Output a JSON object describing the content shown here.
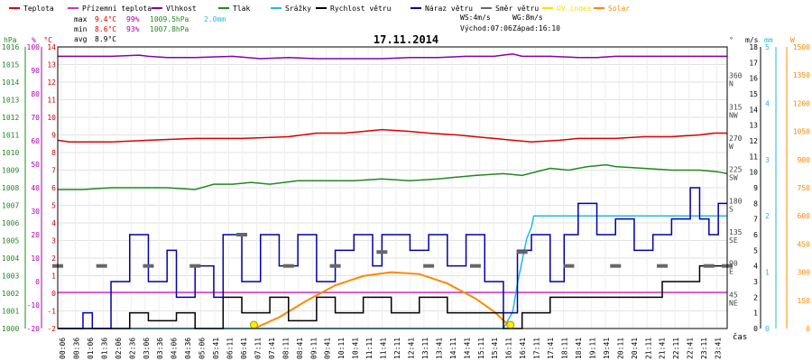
{
  "chart_data": {
    "type": "line",
    "title": "17.11.2014",
    "legend": [
      {
        "label": "Teplota",
        "color": "#dd0000"
      },
      {
        "label": "Přízemní teplota",
        "color": "#cc33cc"
      },
      {
        "label": "Vlhkost",
        "color": "#8800aa"
      },
      {
        "label": "Tlak",
        "color": "#228822"
      },
      {
        "label": "Srážky",
        "color": "#22bbdd"
      },
      {
        "label": "Rychlost větru",
        "color": "#000000"
      },
      {
        "label": "Náraz větru",
        "color": "#0000aa"
      },
      {
        "label": "Směr větru",
        "color": "#666666"
      },
      {
        "label": "UV index",
        "color": "#ffdd00"
      },
      {
        "label": "Solar",
        "color": "#ff8800"
      }
    ],
    "stats": [
      {
        "label": "max",
        "temp": "9.4°C",
        "hum": "99%",
        "pres": "1009.5hPa",
        "rain": "2.0mm"
      },
      {
        "label": "min",
        "temp": "8.6°C",
        "hum": "93%",
        "pres": "1007.8hPa",
        "rain": ""
      },
      {
        "label": "avg",
        "temp": "8.9°C",
        "hum": "",
        "pres": "",
        "rain": ""
      }
    ],
    "wind_info": {
      "ws": "WS:4m/s",
      "wg": "WG:8m/s",
      "sunrise": "Východ:07:06",
      "sunset": "Západ:16:10"
    },
    "x_unit": "čas",
    "x_ticks": [
      "00:06",
      "00:36",
      "01:06",
      "01:36",
      "02:06",
      "02:36",
      "03:06",
      "03:36",
      "04:06",
      "04:36",
      "05:06",
      "05:41",
      "06:11",
      "06:41",
      "07:11",
      "07:41",
      "08:11",
      "08:41",
      "09:11",
      "09:41",
      "10:11",
      "10:41",
      "11:11",
      "11:41",
      "12:11",
      "12:41",
      "13:11",
      "13:41",
      "14:11",
      "14:41",
      "15:11",
      "15:41",
      "16:11",
      "16:41",
      "17:11",
      "17:41",
      "18:11",
      "18:41",
      "19:11",
      "19:41",
      "20:11",
      "20:41",
      "21:11",
      "21:41",
      "22:11",
      "22:41",
      "23:11",
      "23:41"
    ],
    "x_range_minutes": [
      6,
      1439
    ],
    "axes": {
      "hpa": {
        "unit": "hPa",
        "color": "#228822",
        "range": [
          1000,
          1016
        ],
        "ticks": [
          "1000",
          "1001",
          "1002",
          "1003",
          "1004",
          "1005",
          "1006",
          "1007",
          "1008",
          "1009",
          "1010",
          "1011",
          "1012",
          "1013",
          "1014",
          "1015",
          "1016"
        ]
      },
      "pct": {
        "unit": "%",
        "color": "#aa00aa",
        "range": [
          -20,
          100
        ],
        "ticks": [
          "-20",
          "-10",
          "0",
          "10",
          "20",
          "30",
          "40",
          "50",
          "60",
          "70",
          "80",
          "90",
          "100"
        ]
      },
      "degc": {
        "unit": "°C",
        "color": "#cc0000",
        "range": [
          -2,
          14
        ],
        "ticks": [
          "-2",
          "-1",
          "0",
          "1",
          "2",
          "3",
          "4",
          "5",
          "6",
          "7",
          "8",
          "9",
          "10",
          "11",
          "12",
          "13",
          "14"
        ]
      },
      "deg": {
        "unit": "°",
        "color": "#444444",
        "ticks": [
          {
            "value": 360,
            "dir": "N"
          },
          {
            "value": 315,
            "dir": "NW"
          },
          {
            "value": 270,
            "dir": "W"
          },
          {
            "value": 225,
            "dir": "SW"
          },
          {
            "value": 180,
            "dir": "S"
          },
          {
            "value": 135,
            "dir": "SE"
          },
          {
            "value": 90,
            "dir": "E"
          },
          {
            "value": 45,
            "dir": "NE"
          }
        ]
      },
      "ms": {
        "unit": "m/s",
        "color": "#000000",
        "range": [
          0,
          18
        ],
        "ticks": [
          "0",
          "1",
          "2",
          "3",
          "4",
          "5",
          "6",
          "7",
          "8",
          "9",
          "10",
          "11",
          "12",
          "13",
          "14",
          "15",
          "16",
          "17",
          "18"
        ]
      },
      "mm": {
        "unit": "mm",
        "color": "#22bbdd",
        "range": [
          0,
          5
        ],
        "ticks": [
          "0",
          "1",
          "2",
          "3",
          "4",
          "5"
        ]
      },
      "wm2": {
        "unit": "W",
        "color": "#ff8800",
        "range": [
          0,
          1500
        ],
        "ticks": [
          "0",
          "150",
          "300",
          "450",
          "600",
          "750",
          "900",
          "1050",
          "1200",
          "1350",
          "1500"
        ]
      }
    },
    "series": [
      {
        "name": "Vlhkost",
        "axis": "pct",
        "color": "#8800aa",
        "points": [
          [
            6,
            96
          ],
          [
            60,
            96
          ],
          [
            120,
            96
          ],
          [
            180,
            96.5
          ],
          [
            200,
            96
          ],
          [
            240,
            95.5
          ],
          [
            300,
            95.5
          ],
          [
            380,
            96
          ],
          [
            440,
            95
          ],
          [
            500,
            95.5
          ],
          [
            560,
            95
          ],
          [
            620,
            95
          ],
          [
            700,
            95
          ],
          [
            760,
            95.5
          ],
          [
            820,
            95.5
          ],
          [
            880,
            96
          ],
          [
            940,
            96
          ],
          [
            980,
            97
          ],
          [
            1000,
            96
          ],
          [
            1060,
            96
          ],
          [
            1120,
            95.5
          ],
          [
            1160,
            95.5
          ],
          [
            1200,
            96
          ],
          [
            1260,
            96
          ],
          [
            1320,
            96
          ],
          [
            1380,
            96
          ],
          [
            1439,
            96
          ]
        ]
      },
      {
        "name": "Teplota",
        "axis": "degc",
        "color": "#dd0000",
        "points": [
          [
            6,
            8.7
          ],
          [
            30,
            8.6
          ],
          [
            120,
            8.6
          ],
          [
            200,
            8.7
          ],
          [
            300,
            8.8
          ],
          [
            400,
            8.8
          ],
          [
            500,
            8.9
          ],
          [
            560,
            9.1
          ],
          [
            620,
            9.1
          ],
          [
            660,
            9.2
          ],
          [
            700,
            9.3
          ],
          [
            760,
            9.2
          ],
          [
            800,
            9.1
          ],
          [
            860,
            9.0
          ],
          [
            900,
            8.9
          ],
          [
            940,
            8.8
          ],
          [
            980,
            8.7
          ],
          [
            1020,
            8.6
          ],
          [
            1080,
            8.7
          ],
          [
            1120,
            8.8
          ],
          [
            1160,
            8.8
          ],
          [
            1200,
            8.8
          ],
          [
            1260,
            8.9
          ],
          [
            1320,
            8.9
          ],
          [
            1380,
            9.0
          ],
          [
            1410,
            9.1
          ],
          [
            1439,
            9.1
          ]
        ]
      },
      {
        "name": "Přízemní teplota",
        "axis": "degc",
        "color": "#cc33cc",
        "points": [
          [
            6,
            0.05
          ],
          [
            1439,
            0.05
          ]
        ]
      },
      {
        "name": "Tlak",
        "axis": "hpa",
        "color": "#228822",
        "points": [
          [
            6,
            1007.9
          ],
          [
            60,
            1007.9
          ],
          [
            120,
            1008.0
          ],
          [
            180,
            1008.0
          ],
          [
            240,
            1008.0
          ],
          [
            300,
            1007.9
          ],
          [
            340,
            1008.2
          ],
          [
            380,
            1008.2
          ],
          [
            420,
            1008.3
          ],
          [
            460,
            1008.2
          ],
          [
            520,
            1008.4
          ],
          [
            580,
            1008.4
          ],
          [
            640,
            1008.4
          ],
          [
            700,
            1008.5
          ],
          [
            760,
            1008.4
          ],
          [
            820,
            1008.5
          ],
          [
            860,
            1008.6
          ],
          [
            900,
            1008.7
          ],
          [
            960,
            1008.8
          ],
          [
            1000,
            1008.7
          ],
          [
            1060,
            1009.1
          ],
          [
            1100,
            1009.0
          ],
          [
            1140,
            1009.2
          ],
          [
            1180,
            1009.3
          ],
          [
            1200,
            1009.2
          ],
          [
            1260,
            1009.1
          ],
          [
            1320,
            1009.0
          ],
          [
            1380,
            1009.0
          ],
          [
            1420,
            1008.9
          ],
          [
            1439,
            1008.8
          ]
        ]
      },
      {
        "name": "Srážky",
        "axis": "mm",
        "color": "#22bbdd",
        "points": [
          [
            6,
            0
          ],
          [
            960,
            0
          ],
          [
            980,
            0.3
          ],
          [
            990,
            0.8
          ],
          [
            1000,
            1.2
          ],
          [
            1010,
            1.6
          ],
          [
            1020,
            1.8
          ],
          [
            1025,
            2.0
          ],
          [
            1439,
            2.0
          ]
        ]
      },
      {
        "name": "Solar",
        "axis": "wm2",
        "color": "#ff8800",
        "points": [
          [
            426,
            0
          ],
          [
            480,
            60
          ],
          [
            540,
            150
          ],
          [
            600,
            230
          ],
          [
            660,
            280
          ],
          [
            720,
            300
          ],
          [
            780,
            290
          ],
          [
            840,
            240
          ],
          [
            900,
            160
          ],
          [
            940,
            90
          ],
          [
            970,
            20
          ],
          [
            975,
            0
          ]
        ]
      },
      {
        "name": "Rychlost větru",
        "axis": "ms",
        "color": "#000000",
        "points": [
          [
            6,
            0
          ],
          [
            60,
            0
          ],
          [
            120,
            0
          ],
          [
            160,
            1
          ],
          [
            200,
            0.5
          ],
          [
            260,
            1
          ],
          [
            300,
            0
          ],
          [
            360,
            2
          ],
          [
            400,
            1
          ],
          [
            460,
            2
          ],
          [
            500,
            0.5
          ],
          [
            560,
            2
          ],
          [
            600,
            1
          ],
          [
            660,
            2
          ],
          [
            720,
            1
          ],
          [
            780,
            2
          ],
          [
            840,
            1
          ],
          [
            900,
            1
          ],
          [
            960,
            0
          ],
          [
            1000,
            1
          ],
          [
            1060,
            2
          ],
          [
            1120,
            2
          ],
          [
            1180,
            2
          ],
          [
            1240,
            2
          ],
          [
            1300,
            3
          ],
          [
            1340,
            3
          ],
          [
            1380,
            4
          ],
          [
            1439,
            4
          ]
        ]
      },
      {
        "name": "Náraz větru",
        "axis": "ms",
        "color": "#0000aa",
        "points": [
          [
            6,
            0
          ],
          [
            40,
            0
          ],
          [
            60,
            1
          ],
          [
            80,
            0
          ],
          [
            120,
            3
          ],
          [
            160,
            6
          ],
          [
            200,
            3
          ],
          [
            240,
            5
          ],
          [
            260,
            2
          ],
          [
            300,
            4
          ],
          [
            340,
            2
          ],
          [
            360,
            6
          ],
          [
            400,
            3
          ],
          [
            440,
            6
          ],
          [
            480,
            4
          ],
          [
            520,
            6
          ],
          [
            560,
            3
          ],
          [
            600,
            5
          ],
          [
            640,
            6
          ],
          [
            680,
            4
          ],
          [
            700,
            6
          ],
          [
            760,
            5
          ],
          [
            800,
            6
          ],
          [
            840,
            4
          ],
          [
            880,
            6
          ],
          [
            920,
            3
          ],
          [
            960,
            1
          ],
          [
            990,
            5
          ],
          [
            1020,
            6
          ],
          [
            1060,
            3
          ],
          [
            1090,
            6
          ],
          [
            1120,
            8
          ],
          [
            1160,
            6
          ],
          [
            1200,
            7
          ],
          [
            1240,
            5
          ],
          [
            1280,
            6
          ],
          [
            1320,
            7
          ],
          [
            1360,
            9
          ],
          [
            1380,
            7
          ],
          [
            1400,
            6
          ],
          [
            1420,
            8
          ],
          [
            1439,
            8
          ]
        ]
      },
      {
        "name": "Směr větru",
        "axis": "deg",
        "color": "#666666",
        "points": [
          [
            6,
            90
          ],
          [
            100,
            90
          ],
          [
            200,
            90
          ],
          [
            300,
            90
          ],
          [
            400,
            135
          ],
          [
            500,
            90
          ],
          [
            600,
            90
          ],
          [
            700,
            110
          ],
          [
            800,
            90
          ],
          [
            900,
            90
          ],
          [
            1000,
            110
          ],
          [
            1100,
            90
          ],
          [
            1200,
            90
          ],
          [
            1300,
            90
          ],
          [
            1400,
            90
          ],
          [
            1439,
            90
          ]
        ]
      }
    ],
    "markers": {
      "uv_index": [
        {
          "x": 426,
          "wm2": 0
        },
        {
          "x": 975,
          "wm2": 0
        }
      ]
    }
  }
}
